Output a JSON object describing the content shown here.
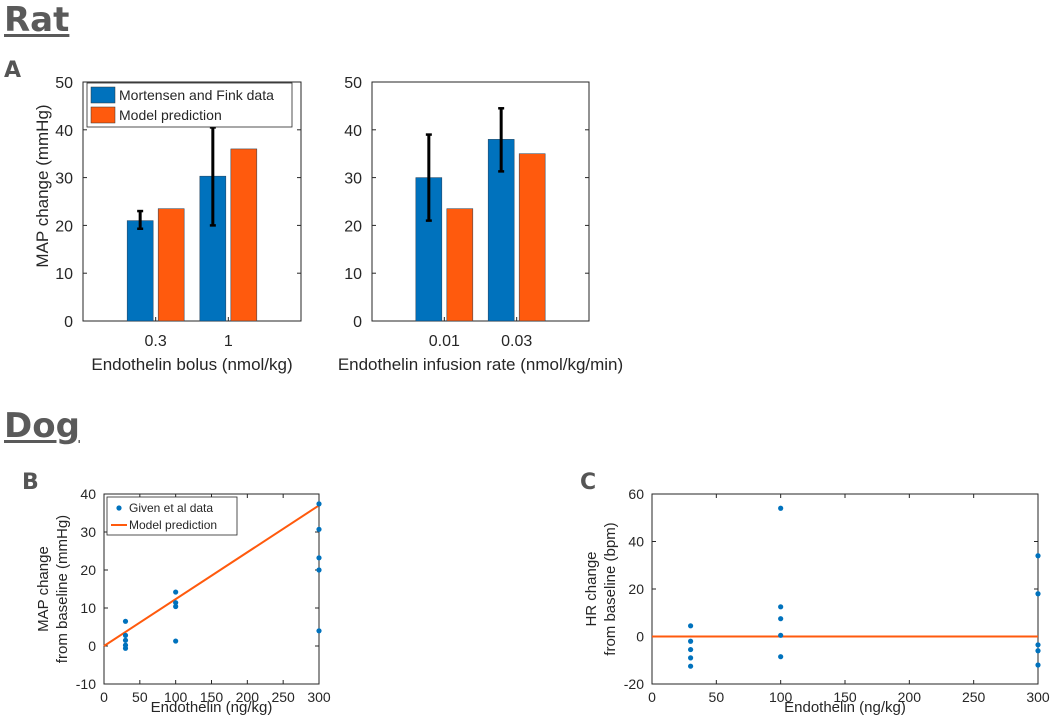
{
  "sections": {
    "rat": "Rat",
    "dog": "Dog"
  },
  "panel_labels": {
    "a": "A",
    "b": "B",
    "c": "C"
  },
  "colors": {
    "data": "#0072BD",
    "model": "#FF5A0D",
    "axis": "#262626",
    "error": "#000000"
  },
  "chart_data": [
    {
      "id": "rat-bolus",
      "type": "bar",
      "title": "",
      "xlabel": "Endothelin bolus (nmol/kg)",
      "ylabel": "MAP change (mmHg)",
      "ylim": [
        0,
        50
      ],
      "yticks": [
        "0",
        "10",
        "20",
        "30",
        "40",
        "50"
      ],
      "categories": [
        "0.3",
        "1"
      ],
      "series": [
        {
          "name": "Mortensen and Fink data",
          "values": [
            21,
            30.3
          ],
          "err_low": [
            19.3,
            20
          ],
          "err_high": [
            23,
            40.5
          ]
        },
        {
          "name": "Model prediction",
          "values": [
            23.5,
            36
          ]
        }
      ],
      "legend": [
        "Mortensen and Fink data",
        "Model prediction"
      ],
      "legend_position": "top-left"
    },
    {
      "id": "rat-infusion",
      "type": "bar",
      "title": "",
      "xlabel": "Endothelin infusion rate (nmol/kg/min)",
      "ylabel": "",
      "ylim": [
        0,
        50
      ],
      "yticks": [
        "0",
        "10",
        "20",
        "30",
        "40",
        "50"
      ],
      "categories": [
        "0.01",
        "0.03"
      ],
      "series": [
        {
          "name": "Mortensen and Fink data",
          "values": [
            30,
            38
          ],
          "err_low": [
            21,
            31.3
          ],
          "err_high": [
            39,
            44.5
          ]
        },
        {
          "name": "Model prediction",
          "values": [
            23.5,
            35
          ]
        }
      ]
    },
    {
      "id": "dog-map",
      "type": "scatter",
      "title": "",
      "xlabel": "Endothelin (ng/kg)",
      "ylabel": [
        "MAP change",
        "from baseline (mmHg)"
      ],
      "xlim": [
        0,
        300
      ],
      "ylim": [
        -10,
        40
      ],
      "xticks": [
        "0",
        "50",
        "100",
        "150",
        "200",
        "250",
        "300"
      ],
      "yticks": [
        "-10",
        "0",
        "10",
        "20",
        "30",
        "40"
      ],
      "series": [
        {
          "name": "Given et al data",
          "kind": "points",
          "x": [
            30,
            30,
            30,
            30,
            30,
            100,
            100,
            100,
            100,
            300,
            300,
            300,
            300,
            300
          ],
          "y": [
            6.5,
            2.8,
            1.5,
            0.2,
            -0.6,
            14.2,
            11.4,
            10.4,
            1.3,
            37.4,
            30.7,
            23.2,
            20,
            4
          ]
        },
        {
          "name": "Model prediction",
          "kind": "line",
          "x": [
            0,
            300
          ],
          "y": [
            0,
            37
          ]
        }
      ],
      "legend": [
        "Given et al data",
        "Model prediction"
      ],
      "legend_position": "top-left"
    },
    {
      "id": "dog-hr",
      "type": "scatter",
      "title": "",
      "xlabel": "Endothelin (ng/kg)",
      "ylabel": [
        "HR change",
        "from baseline (bpm)"
      ],
      "xlim": [
        0,
        300
      ],
      "ylim": [
        -20,
        60
      ],
      "xticks": [
        "0",
        "50",
        "100",
        "150",
        "200",
        "250",
        "300"
      ],
      "yticks": [
        "-20",
        "0",
        "20",
        "40",
        "60"
      ],
      "series": [
        {
          "name": "Given et al data",
          "kind": "points",
          "x": [
            30,
            30,
            30,
            30,
            30,
            100,
            100,
            100,
            100,
            100,
            300,
            300,
            300,
            300,
            300
          ],
          "y": [
            4.5,
            -2,
            -5.5,
            -9,
            -12.5,
            54,
            12.5,
            7.5,
            0.5,
            -8.5,
            34,
            18,
            -3.5,
            -6,
            -12
          ]
        },
        {
          "name": "Model prediction",
          "kind": "line",
          "x": [
            0,
            300
          ],
          "y": [
            0,
            0
          ]
        }
      ]
    }
  ]
}
